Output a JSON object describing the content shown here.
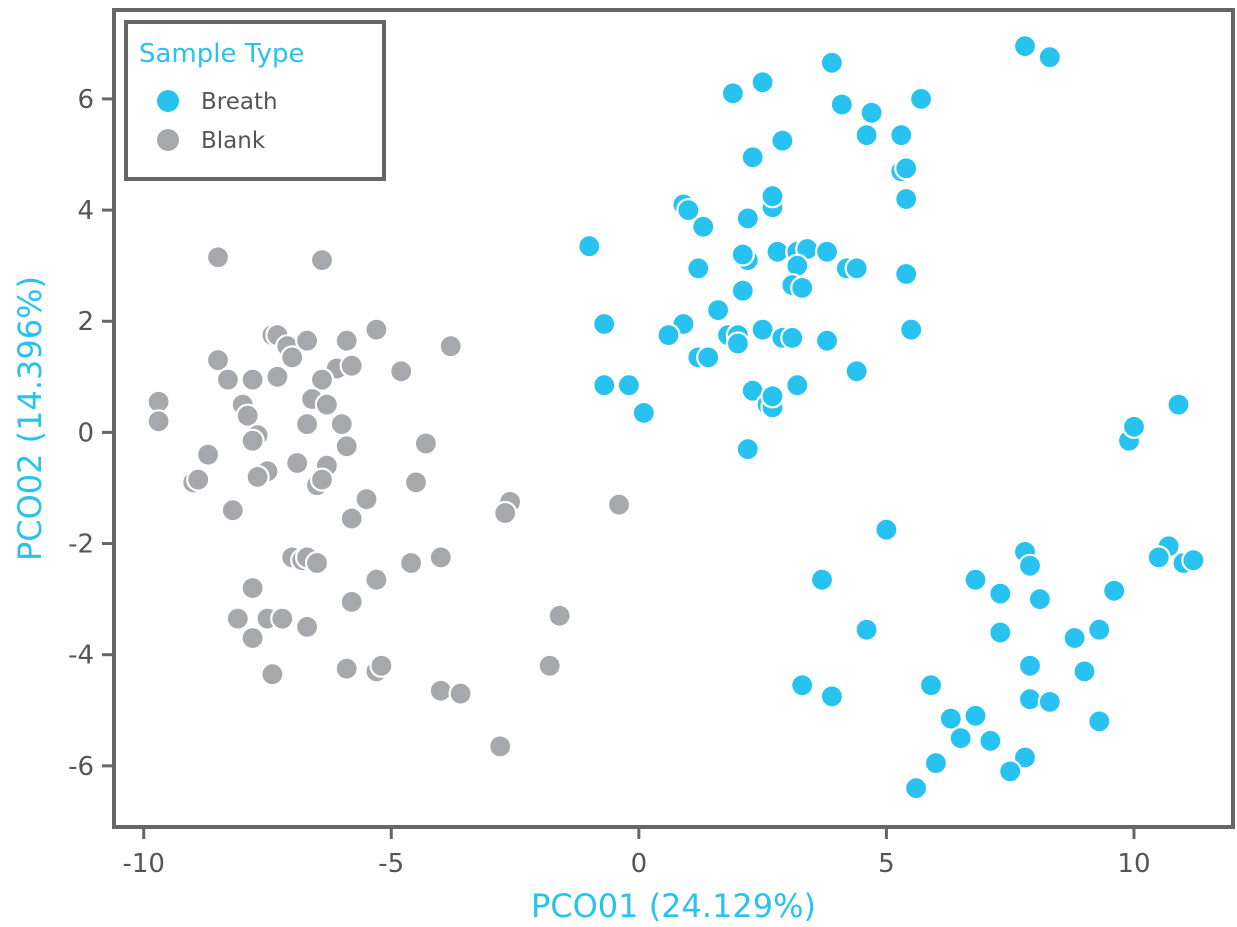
{
  "chart_data": {
    "type": "scatter",
    "xlabel": "PCO01 (24.129%)",
    "ylabel": "PCO02 (14.396%)",
    "xlim": [
      -10.6,
      12.0
    ],
    "ylim": [
      -7.1,
      7.6
    ],
    "xticks": [
      -10,
      -5,
      0,
      5,
      10
    ],
    "yticks": [
      -6,
      -4,
      -2,
      0,
      2,
      4,
      6
    ],
    "grid": false,
    "legend": {
      "title": "Sample Type",
      "placement": "top-left"
    },
    "colors": {
      "Breath": "#28c2f0",
      "Blank": "#a6a8ab",
      "axis": "#666666",
      "title": "#28c2f0"
    },
    "series": [
      {
        "name": "Breath",
        "points": [
          [
            7.8,
            6.95
          ],
          [
            8.3,
            6.75
          ],
          [
            3.9,
            6.65
          ],
          [
            1.9,
            6.1
          ],
          [
            2.5,
            6.3
          ],
          [
            5.7,
            6.0
          ],
          [
            4.1,
            5.9
          ],
          [
            4.7,
            5.75
          ],
          [
            5.3,
            5.35
          ],
          [
            2.9,
            5.25
          ],
          [
            4.6,
            5.35
          ],
          [
            2.3,
            4.95
          ],
          [
            5.3,
            4.7
          ],
          [
            5.4,
            4.75
          ],
          [
            5.4,
            4.2
          ],
          [
            0.9,
            4.1
          ],
          [
            1.0,
            4.0
          ],
          [
            2.7,
            4.05
          ],
          [
            2.7,
            4.25
          ],
          [
            2.2,
            3.85
          ],
          [
            1.3,
            3.7
          ],
          [
            -1.0,
            3.35
          ],
          [
            2.2,
            3.1
          ],
          [
            2.1,
            3.2
          ],
          [
            2.8,
            3.25
          ],
          [
            3.2,
            3.25
          ],
          [
            3.4,
            3.3
          ],
          [
            3.8,
            3.25
          ],
          [
            3.2,
            3.0
          ],
          [
            1.2,
            2.95
          ],
          [
            4.2,
            2.95
          ],
          [
            4.4,
            2.95
          ],
          [
            5.4,
            2.85
          ],
          [
            3.1,
            2.65
          ],
          [
            3.3,
            2.6
          ],
          [
            2.1,
            2.55
          ],
          [
            1.6,
            2.2
          ],
          [
            0.9,
            1.95
          ],
          [
            -0.7,
            1.95
          ],
          [
            0.6,
            1.75
          ],
          [
            1.8,
            1.75
          ],
          [
            2.0,
            1.75
          ],
          [
            2.0,
            1.6
          ],
          [
            2.5,
            1.85
          ],
          [
            2.9,
            1.7
          ],
          [
            3.1,
            1.7
          ],
          [
            3.8,
            1.65
          ],
          [
            5.5,
            1.85
          ],
          [
            1.2,
            1.35
          ],
          [
            1.4,
            1.35
          ],
          [
            4.4,
            1.1
          ],
          [
            -0.7,
            0.85
          ],
          [
            -0.2,
            0.85
          ],
          [
            2.3,
            0.75
          ],
          [
            3.2,
            0.85
          ],
          [
            2.6,
            0.5
          ],
          [
            2.7,
            0.45
          ],
          [
            2.7,
            0.65
          ],
          [
            0.1,
            0.35
          ],
          [
            2.2,
            -0.3
          ],
          [
            10.9,
            0.5
          ],
          [
            9.9,
            -0.15
          ],
          [
            10.0,
            0.1
          ],
          [
            5.0,
            -1.75
          ],
          [
            10.7,
            -2.05
          ],
          [
            10.5,
            -2.25
          ],
          [
            11.0,
            -2.35
          ],
          [
            11.2,
            -2.3
          ],
          [
            7.8,
            -2.15
          ],
          [
            7.9,
            -2.4
          ],
          [
            3.7,
            -2.65
          ],
          [
            6.8,
            -2.65
          ],
          [
            7.3,
            -2.9
          ],
          [
            8.1,
            -3.0
          ],
          [
            9.6,
            -2.85
          ],
          [
            4.6,
            -3.55
          ],
          [
            7.3,
            -3.6
          ],
          [
            8.8,
            -3.7
          ],
          [
            9.3,
            -3.55
          ],
          [
            7.9,
            -4.2
          ],
          [
            9.0,
            -4.3
          ],
          [
            3.3,
            -4.55
          ],
          [
            3.9,
            -4.75
          ],
          [
            5.9,
            -4.55
          ],
          [
            7.9,
            -4.8
          ],
          [
            8.3,
            -4.85
          ],
          [
            6.3,
            -5.15
          ],
          [
            6.8,
            -5.1
          ],
          [
            9.3,
            -5.2
          ],
          [
            6.5,
            -5.5
          ],
          [
            7.1,
            -5.55
          ],
          [
            6.0,
            -5.95
          ],
          [
            7.8,
            -5.85
          ],
          [
            7.5,
            -6.1
          ],
          [
            5.6,
            -6.4
          ]
        ]
      },
      {
        "name": "Blank",
        "points": [
          [
            -8.5,
            3.15
          ],
          [
            -6.4,
            3.1
          ],
          [
            -7.4,
            1.75
          ],
          [
            -7.3,
            1.75
          ],
          [
            -7.1,
            1.55
          ],
          [
            -6.7,
            1.65
          ],
          [
            -5.9,
            1.65
          ],
          [
            -5.3,
            1.85
          ],
          [
            -3.8,
            1.55
          ],
          [
            -7.0,
            1.35
          ],
          [
            -6.1,
            1.15
          ],
          [
            -5.8,
            1.2
          ],
          [
            -4.8,
            1.1
          ],
          [
            -8.5,
            1.3
          ],
          [
            -8.3,
            0.95
          ],
          [
            -7.8,
            0.95
          ],
          [
            -7.3,
            1.0
          ],
          [
            -6.4,
            0.95
          ],
          [
            -9.7,
            0.55
          ],
          [
            -8.0,
            0.5
          ],
          [
            -7.9,
            0.3
          ],
          [
            -6.6,
            0.6
          ],
          [
            -6.3,
            0.5
          ],
          [
            -9.7,
            0.2
          ],
          [
            -6.7,
            0.15
          ],
          [
            -6.0,
            0.15
          ],
          [
            -7.7,
            -0.05
          ],
          [
            -7.8,
            -0.15
          ],
          [
            -5.9,
            -0.25
          ],
          [
            -4.3,
            -0.2
          ],
          [
            -8.7,
            -0.4
          ],
          [
            -7.5,
            -0.7
          ],
          [
            -6.9,
            -0.55
          ],
          [
            -6.3,
            -0.6
          ],
          [
            -9.0,
            -0.9
          ],
          [
            -8.9,
            -0.85
          ],
          [
            -7.7,
            -0.8
          ],
          [
            -6.5,
            -0.95
          ],
          [
            -6.4,
            -0.85
          ],
          [
            -4.5,
            -0.9
          ],
          [
            -8.2,
            -1.4
          ],
          [
            -5.5,
            -1.2
          ],
          [
            -5.8,
            -1.55
          ],
          [
            -2.6,
            -1.25
          ],
          [
            -2.7,
            -1.45
          ],
          [
            -0.4,
            -1.3
          ],
          [
            -7.0,
            -2.25
          ],
          [
            -6.8,
            -2.3
          ],
          [
            -6.7,
            -2.25
          ],
          [
            -6.5,
            -2.35
          ],
          [
            -4.6,
            -2.35
          ],
          [
            -4.0,
            -2.25
          ],
          [
            -5.3,
            -2.65
          ],
          [
            -7.8,
            -2.8
          ],
          [
            -5.8,
            -3.05
          ],
          [
            -8.1,
            -3.35
          ],
          [
            -7.5,
            -3.35
          ],
          [
            -7.2,
            -3.35
          ],
          [
            -6.7,
            -3.5
          ],
          [
            -1.6,
            -3.3
          ],
          [
            -7.8,
            -3.7
          ],
          [
            -5.9,
            -4.25
          ],
          [
            -5.3,
            -4.3
          ],
          [
            -5.2,
            -4.2
          ],
          [
            -1.8,
            -4.2
          ],
          [
            -7.4,
            -4.35
          ],
          [
            -4.0,
            -4.65
          ],
          [
            -3.6,
            -4.7
          ],
          [
            -2.8,
            -5.65
          ]
        ]
      }
    ]
  }
}
